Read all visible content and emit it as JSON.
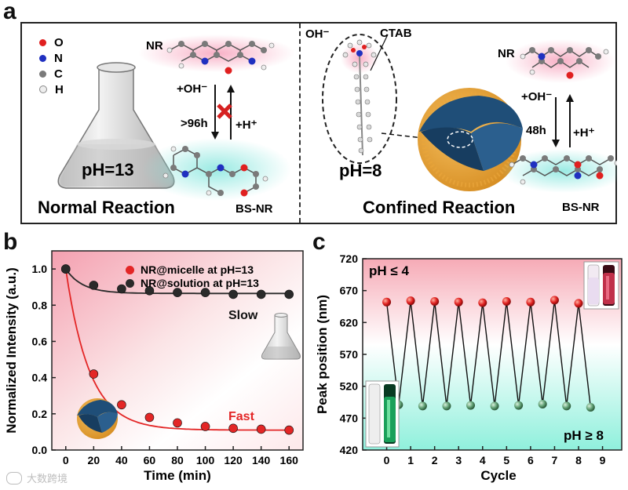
{
  "panel_a": {
    "letter": "a",
    "legend": [
      {
        "symbol": "O",
        "color": "#e02020"
      },
      {
        "symbol": "N",
        "color": "#2030c0"
      },
      {
        "symbol": "C",
        "color": "#7a7a7a"
      },
      {
        "symbol": "H",
        "color": "#e6e6e6"
      }
    ],
    "flask_label": "pH=13",
    "nr_label_left": "NR",
    "bsnr_label_left": "BS-NR",
    "oh_arrow_left": "+OH⁻",
    "time_left": ">96h",
    "h_arrow_left": "+H⁺",
    "normal_title": "Normal Reaction",
    "oh_label_micelle": "OH⁻",
    "ctab_label": "CTAB",
    "ph8_label": "pH=8",
    "nr_label_right": "NR",
    "bsnr_label_right": "BS-NR",
    "oh_arrow_right": "+OH⁻",
    "time_right": "48h",
    "h_arrow_right": "+H⁺",
    "confined_title": "Confined Reaction"
  },
  "panel_b": {
    "letter": "b",
    "legend": [
      "NR@micelle at pH=13",
      "NR@solution at pH=13"
    ],
    "slow_label": "Slow",
    "fast_label": "Fast"
  },
  "panel_c": {
    "letter": "c",
    "ph_low": "pH ≤ 4",
    "ph_high": "pH ≥ 8"
  },
  "watermark": "大数跨境",
  "chart_data": [
    {
      "type": "scatter",
      "title": "",
      "xlabel": "Time (min)",
      "ylabel": "Normalized Intensity (a.u.)",
      "xlim": [
        -10,
        170
      ],
      "ylim": [
        0.0,
        1.1
      ],
      "xticks": [
        0,
        20,
        40,
        60,
        80,
        100,
        120,
        140,
        160
      ],
      "yticks": [
        0.0,
        0.2,
        0.4,
        0.6,
        0.8,
        1.0
      ],
      "series": [
        {
          "name": "NR@micelle at pH=13",
          "color": "#e32626",
          "x": [
            0,
            20,
            40,
            60,
            80,
            100,
            120,
            140,
            160
          ],
          "y": [
            1.0,
            0.42,
            0.25,
            0.18,
            0.15,
            0.13,
            0.12,
            0.115,
            0.11
          ]
        },
        {
          "name": "NR@solution at pH=13",
          "color": "#2a2a2a",
          "x": [
            0,
            20,
            40,
            60,
            80,
            100,
            120,
            140,
            160
          ],
          "y": [
            1.0,
            0.91,
            0.89,
            0.88,
            0.87,
            0.87,
            0.86,
            0.86,
            0.86
          ]
        }
      ]
    },
    {
      "type": "line",
      "title": "",
      "xlabel": "Cycle",
      "ylabel": "Peak position (nm)",
      "xlim": [
        -1,
        9.8
      ],
      "ylim": [
        420,
        720
      ],
      "xticks": [
        0,
        1,
        2,
        3,
        4,
        5,
        6,
        7,
        8,
        9
      ],
      "yticks": [
        420,
        470,
        520,
        570,
        620,
        670,
        720
      ],
      "series": [
        {
          "name": "pH ≤ 4",
          "color": "#e02020",
          "x": [
            0,
            1,
            2,
            3,
            4,
            5,
            6,
            7,
            8
          ],
          "y": [
            652,
            654,
            653,
            652,
            651,
            653,
            652,
            655,
            650
          ]
        },
        {
          "name": "pH ≥ 8",
          "color": "#5e9e72",
          "x": [
            0.5,
            1.5,
            2.5,
            3.5,
            4.5,
            5.5,
            6.5,
            7.5,
            8.5
          ],
          "y": [
            491,
            489,
            489,
            490,
            489,
            490,
            492,
            489,
            487
          ]
        }
      ]
    }
  ]
}
